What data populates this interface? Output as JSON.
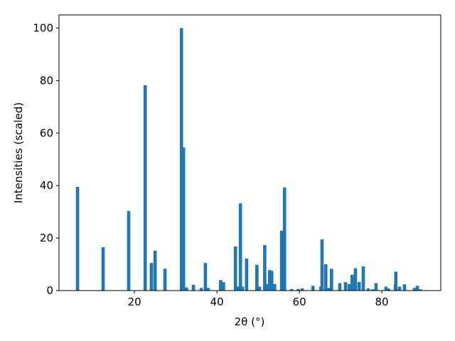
{
  "chart_data": {
    "type": "bar",
    "x_label": "2θ (°)",
    "y_label": "Intensities (scaled)",
    "color": "#1f77b4",
    "x": [
      6.2,
      12.4,
      18.6,
      22.6,
      24.1,
      25.0,
      27.4,
      31.4,
      31.9,
      32.6,
      34.3,
      36.2,
      37.2,
      37.9,
      40.9,
      41.6,
      44.5,
      45.2,
      45.7,
      46.2,
      47.2,
      49.7,
      50.3,
      51.6,
      52.2,
      52.8,
      53.3,
      54.0,
      55.7,
      56.4,
      58.1,
      59.7,
      60.7,
      63.3,
      65.2,
      65.5,
      66.4,
      67.1,
      67.8,
      69.8,
      71.2,
      72.1,
      72.8,
      73.6,
      74.5,
      75.5,
      76.7,
      77.8,
      78.6,
      81.0,
      81.6,
      83.3,
      83.4,
      84.3,
      85.5,
      87.9,
      88.6,
      89.3
    ],
    "values": [
      39.5,
      16.5,
      30.3,
      78.2,
      10.5,
      15.2,
      8.3,
      100,
      54.5,
      1.2,
      2.2,
      1.0,
      10.5,
      1.0,
      4.0,
      3.2,
      16.8,
      1.5,
      33.2,
      1.5,
      12.2,
      9.8,
      1.5,
      17.3,
      2.5,
      7.8,
      7.5,
      2.5,
      22.8,
      39.3,
      0.6,
      0.6,
      0.8,
      1.8,
      1.5,
      19.5,
      10,
      1.0,
      8.3,
      2.8,
      3.2,
      2.5,
      6,
      8.5,
      3.3,
      9.2,
      0.8,
      0.5,
      2.8,
      1.5,
      0.8,
      2.5,
      7.2,
      1.5,
      2.4,
      1.0,
      1.8,
      0.5
    ],
    "xlim": [
      1.7,
      94.3
    ],
    "ylim": [
      0,
      105
    ],
    "xticks": [
      20,
      40,
      60,
      80
    ],
    "yticks": [
      0,
      20,
      40,
      60,
      80,
      100
    ]
  }
}
